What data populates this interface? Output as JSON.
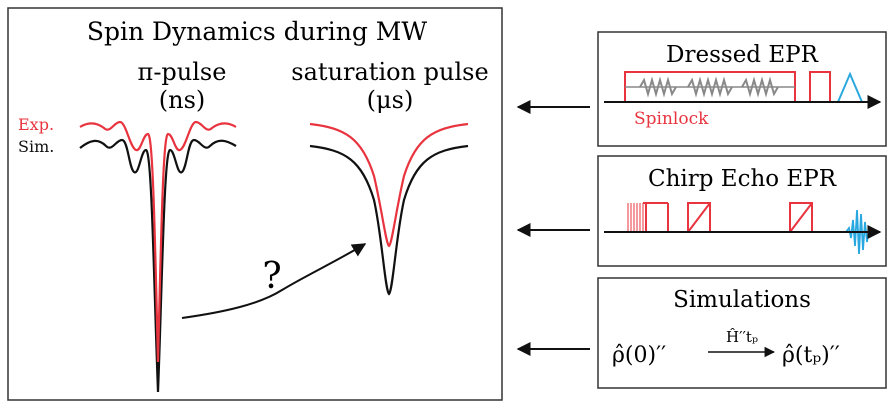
{
  "left_panel": {
    "title": "Spin Dynamics during MW",
    "pi_pulse": {
      "label": "π-pulse",
      "unit": "(ns)"
    },
    "saturation": {
      "label": "saturation pulse",
      "unit": "(μs)"
    },
    "legend": {
      "exp": "Exp.",
      "sim": "Sim."
    },
    "question": "?"
  },
  "boxes": [
    {
      "title": "Dressed EPR",
      "caption": "Spinlock"
    },
    {
      "title": "Chirp Echo EPR"
    },
    {
      "title": "Simulations",
      "formula": {
        "lhs": "ρ̂(0)′′",
        "over": "Ĥ′′tₚ",
        "rhs": "ρ̂(tₚ)′′"
      }
    }
  ],
  "colors": {
    "exp": "#e8343f",
    "sim": "#111111",
    "echo": "#29a8e0",
    "pulse": "#e8343f",
    "axis": "#111111"
  }
}
